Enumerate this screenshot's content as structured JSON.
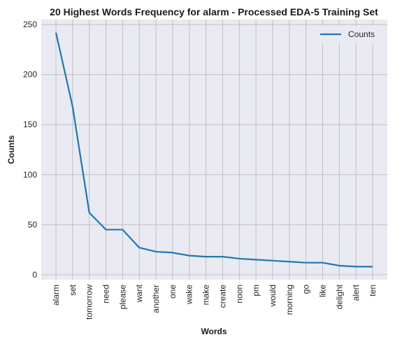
{
  "chart_data": {
    "type": "line",
    "title": "20 Highest Words Frequency for alarm - Processed EDA-5 Training Set",
    "xlabel": "Words",
    "ylabel": "Counts",
    "categories": [
      "alarm",
      "set",
      "tomorrow",
      "need",
      "please",
      "want",
      "another",
      "one",
      "wake",
      "make",
      "create",
      "noon",
      "pm",
      "would",
      "morning",
      "go",
      "like",
      "delight",
      "alert",
      "ten"
    ],
    "series": [
      {
        "name": "Counts",
        "values": [
          242,
          168,
          62,
          45,
          45,
          27,
          23,
          22,
          19,
          18,
          18,
          16,
          15,
          14,
          13,
          12,
          12,
          9,
          8,
          8
        ]
      }
    ],
    "ylim": [
      -5,
      255
    ],
    "yticks": [
      0,
      50,
      100,
      150,
      200,
      250
    ],
    "grid": true,
    "legend": "top-right",
    "colors": {
      "line": "#1f77b4",
      "background": "#eaeaf2",
      "grid": "#c0c0c0"
    }
  }
}
